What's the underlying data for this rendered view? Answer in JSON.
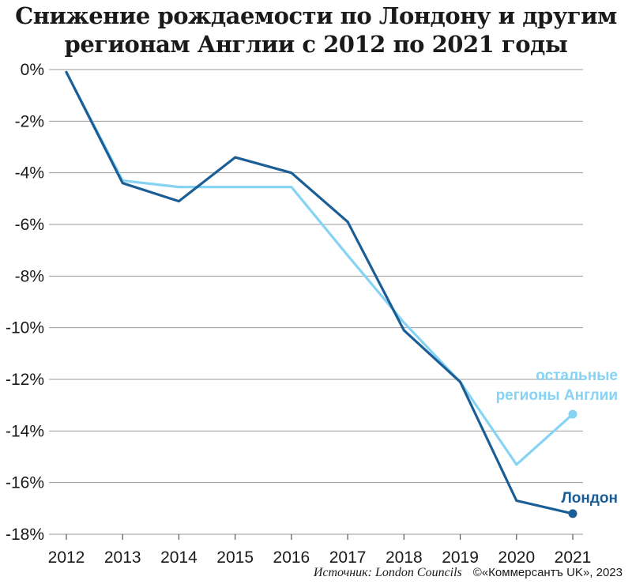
{
  "chart_data": {
    "type": "line",
    "title": "Снижение рождаемости по Лондону и другим регионам Англии с 2012 по 2021 годы",
    "x": [
      "2012",
      "2013",
      "2014",
      "2015",
      "2016",
      "2017",
      "2018",
      "2019",
      "2020",
      "2021"
    ],
    "y_ticks": [
      "0%",
      "-2%",
      "-4%",
      "-6%",
      "-8%",
      "-10%",
      "-12%",
      "-14%",
      "-16%",
      "-18%"
    ],
    "ylim": [
      -18,
      0
    ],
    "grid": true,
    "series": [
      {
        "name": "Лондон",
        "color": "#1b5e96",
        "values": [
          -0.1,
          -4.4,
          -5.1,
          -3.4,
          -4.0,
          -5.9,
          -10.1,
          -12.1,
          -16.7,
          -17.2
        ]
      },
      {
        "name": "остальные регионы Англии",
        "color": "#86d3f3",
        "values": [
          -0.1,
          -4.3,
          -4.55,
          -4.55,
          -4.55,
          -7.2,
          -9.8,
          -12.1,
          -15.3,
          -13.35
        ]
      }
    ]
  },
  "labels": {
    "london": "Лондон",
    "rest_line1": "остальные",
    "rest_line2": "регионы Англии"
  },
  "footer": {
    "source": "Источник: London Councils",
    "copyright": "©«Коммерсантъ UK», 2023"
  }
}
